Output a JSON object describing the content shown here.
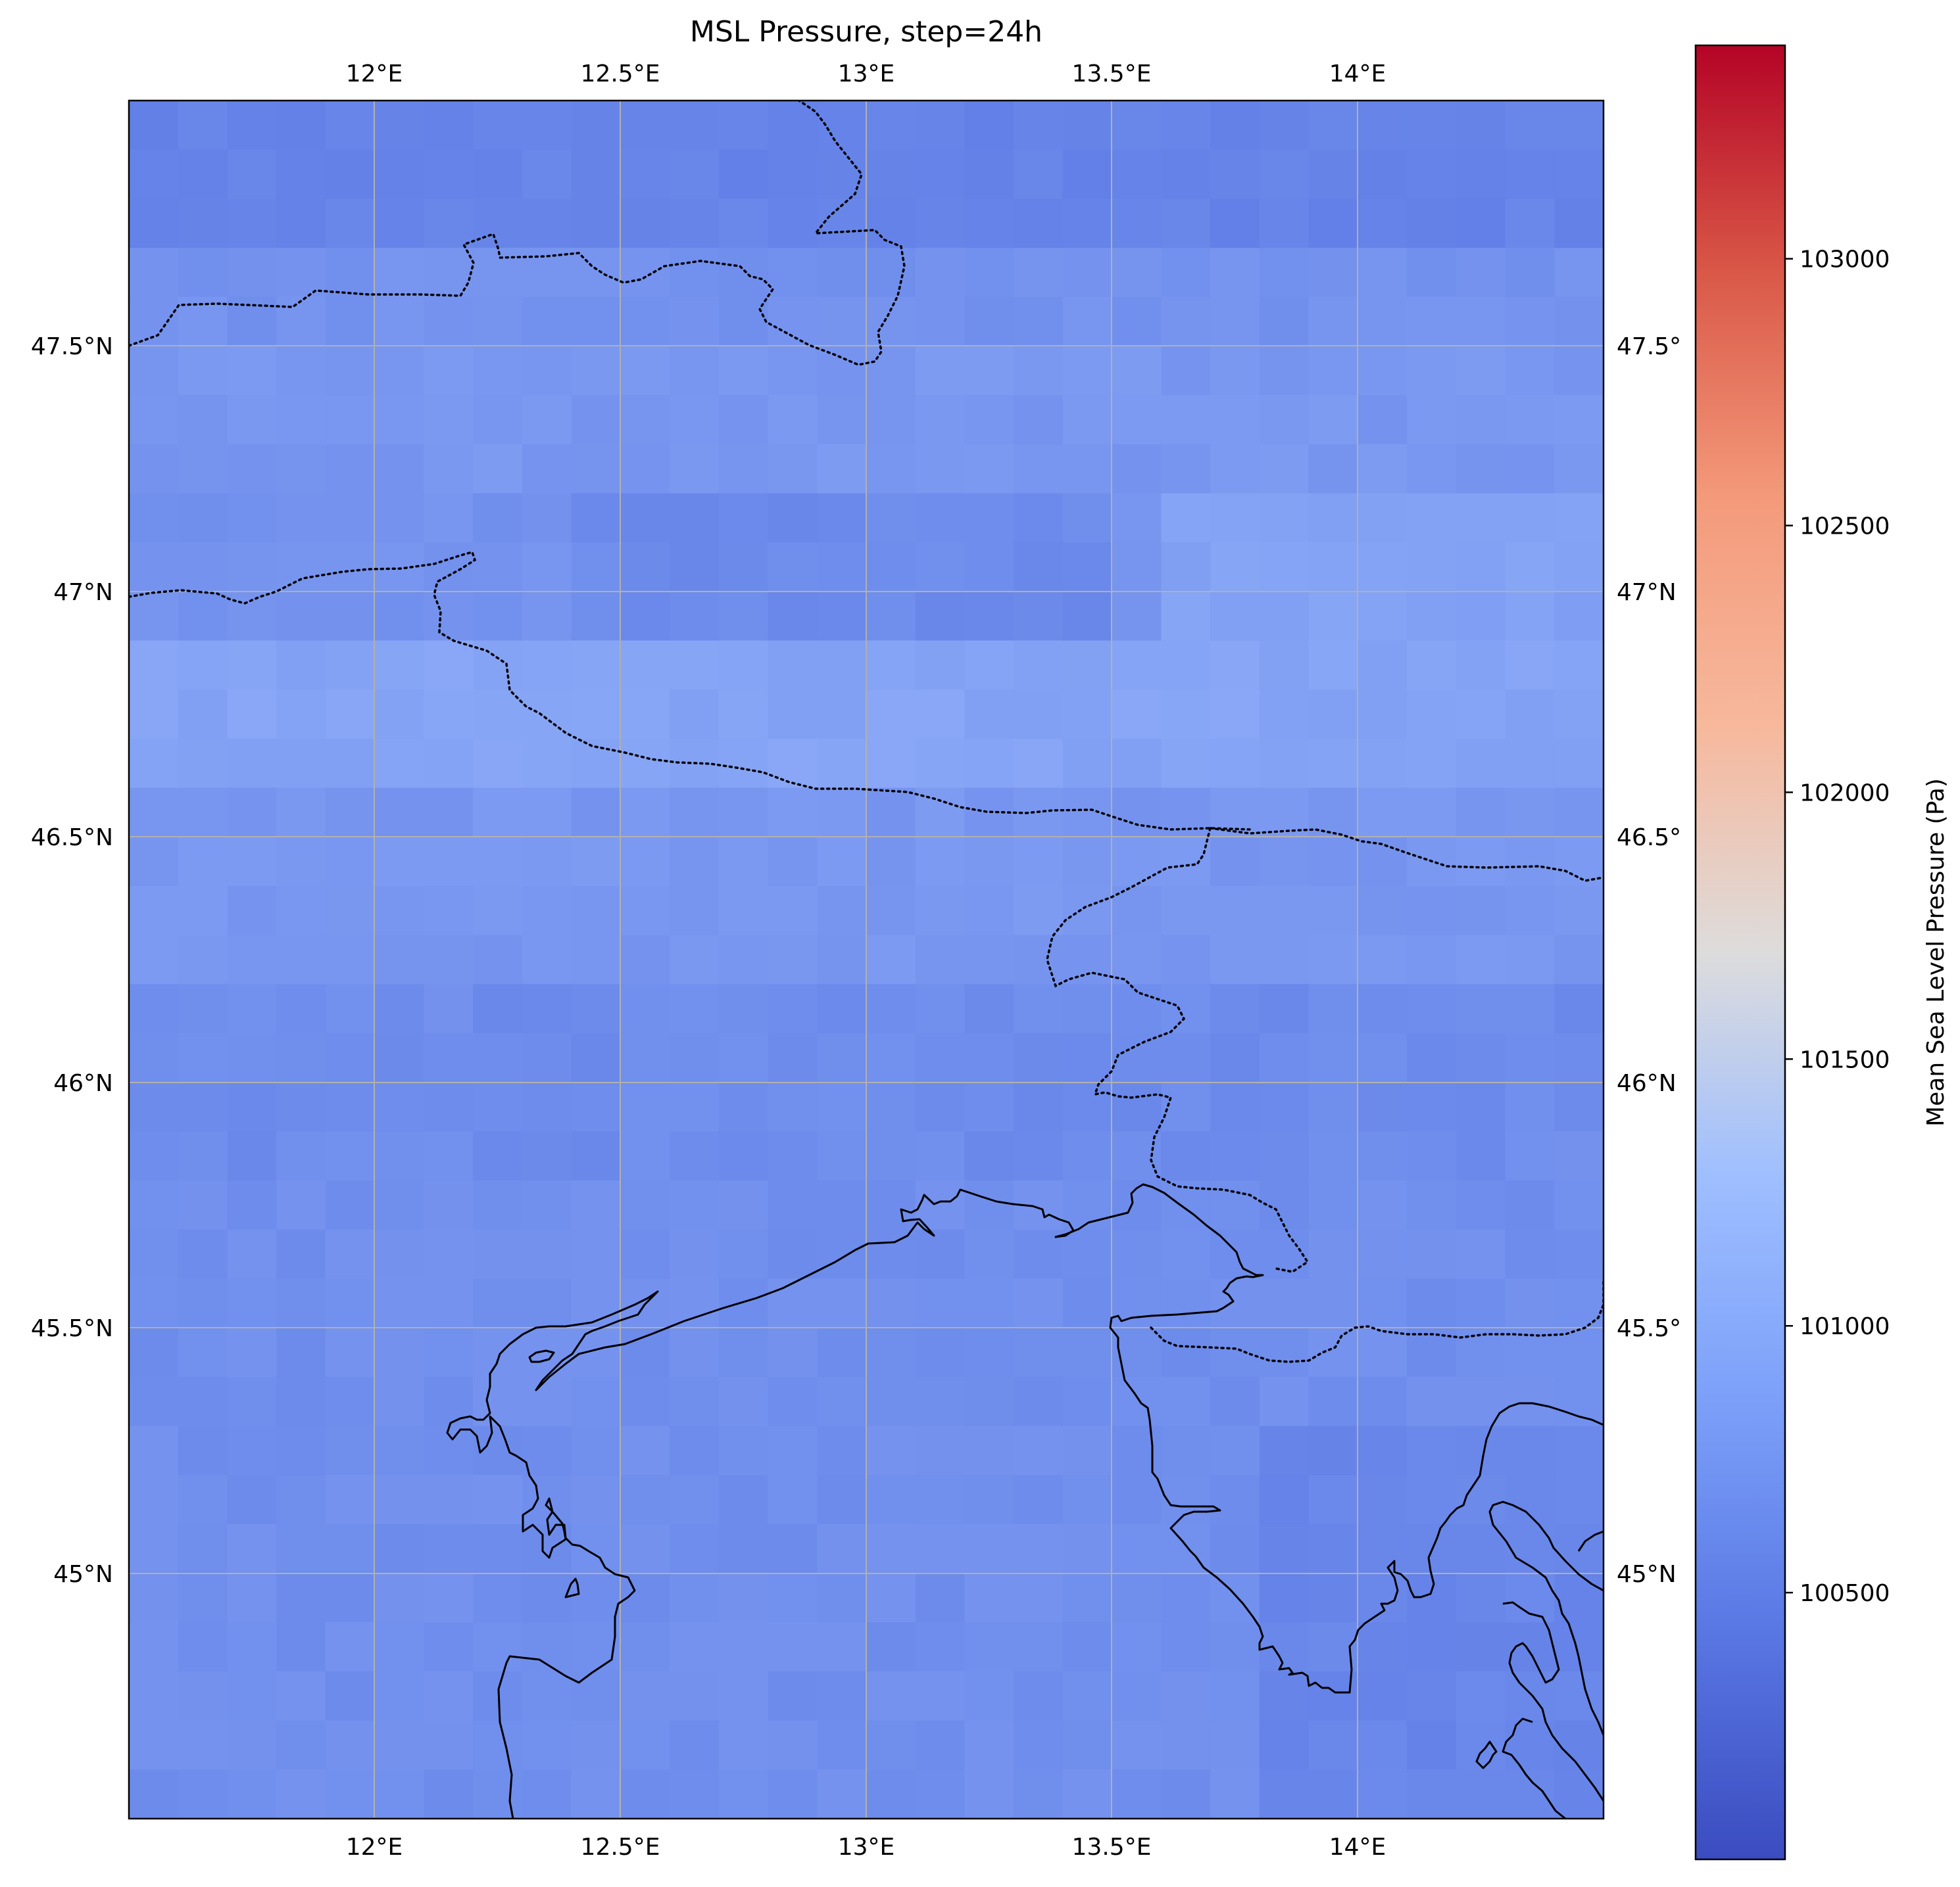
{
  "title": "MSL Pressure, step=24h",
  "map": {
    "lon_range": [
      11.5,
      14.5
    ],
    "lat_range": [
      44.5,
      48.0
    ],
    "lon_ticks": [
      "12°E",
      "12.5°E",
      "13°E",
      "13.5°E",
      "14°E"
    ],
    "lat_ticks": [
      "47.5°N",
      "47°N",
      "46.5°N",
      "46°N",
      "45.5°N",
      "45°N"
    ],
    "lat_ticks_right": [
      "47.5°",
      "47°N",
      "46.5°",
      "46°N",
      "45.5°",
      "45°N"
    ],
    "gridlines": true,
    "colormap": "coolwarm",
    "field_range_pa": [
      100300,
      101200
    ],
    "coastline_style": "solid",
    "border_style": "dotted"
  },
  "colorbar": {
    "label": "Mean Sea Level Pressure (Pa)",
    "ticks": [
      "100500",
      "101000",
      "101500",
      "102000",
      "102500",
      "103000"
    ],
    "tick_values": [
      100500,
      101000,
      101500,
      102000,
      102500,
      103000
    ],
    "vmin": 100000,
    "vmax": 103400
  },
  "colors": {
    "low": "#3b4cc0",
    "mid": "#dddcdc",
    "high": "#b40426",
    "grid": "#b0b0b0"
  }
}
